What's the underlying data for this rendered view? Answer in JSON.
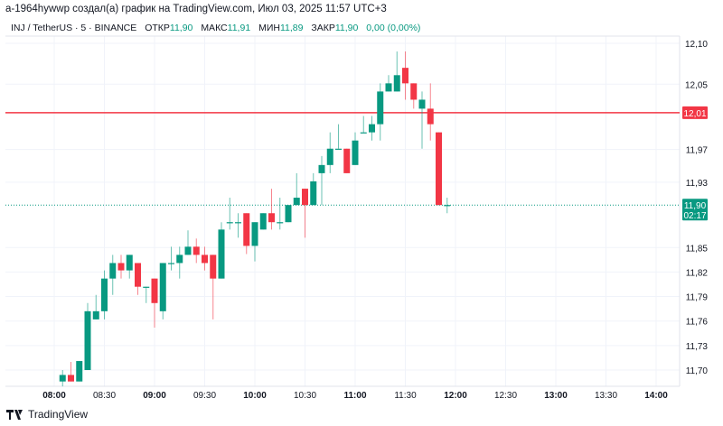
{
  "header": {
    "title": "a-1964hywwp создал(а) график на TradingView.com, Июл 03, 2025 11:57 UTC+3"
  },
  "legend": {
    "symbol": "INJ / TetherUS · 5 · BINANCE",
    "open_label": "ОТКР",
    "open": "11,90",
    "high_label": "МАКС",
    "high": "11,91",
    "low_label": "МИН",
    "low": "11,89",
    "close_label": "ЗАКР",
    "close": "11,90",
    "change": "0,00 (0,00%)"
  },
  "brand": {
    "name": "TradingView"
  },
  "colors": {
    "up": "#089981",
    "down": "#f23645",
    "grid": "#f0f3fa",
    "text": "#131722"
  },
  "chart_data": {
    "type": "candlestick",
    "interval": "5m",
    "price_ticks": [
      "12,10",
      "12,05",
      "11,97",
      "11,93",
      "11,85",
      "11,82",
      "11,79",
      "11,76",
      "11,73",
      "11,70"
    ],
    "price_tick_values": [
      12.1,
      12.05,
      11.97,
      11.93,
      11.85,
      11.82,
      11.79,
      11.76,
      11.73,
      11.7
    ],
    "time_ticks": [
      {
        "t": "08:00",
        "bold": true
      },
      {
        "t": "08:30"
      },
      {
        "t": "09:00",
        "bold": true
      },
      {
        "t": "09:30"
      },
      {
        "t": "10:00",
        "bold": true
      },
      {
        "t": "10:30"
      },
      {
        "t": "11:00",
        "bold": true
      },
      {
        "t": "11:30"
      },
      {
        "t": "12:00",
        "bold": true
      },
      {
        "t": "12:30"
      },
      {
        "t": "13:00",
        "bold": true
      },
      {
        "t": "13:30"
      },
      {
        "t": "14:00",
        "bold": true
      }
    ],
    "ylim": [
      11.68,
      12.115
    ],
    "horizontal_line": {
      "price": 12.015,
      "label": "12,01"
    },
    "last_price": {
      "price": 11.902,
      "label": "11,90",
      "countdown": "02:17"
    },
    "candles": [
      [
        "08:05",
        11.686,
        11.7,
        11.68,
        11.694
      ],
      [
        "08:10",
        11.694,
        11.71,
        11.686,
        11.686
      ],
      [
        "08:15",
        11.686,
        11.711,
        11.686,
        11.711
      ],
      [
        "08:20",
        11.7,
        11.782,
        11.7,
        11.772
      ],
      [
        "08:25",
        11.762,
        11.792,
        11.762,
        11.772
      ],
      [
        "08:30",
        11.772,
        11.822,
        11.762,
        11.812
      ],
      [
        "08:35",
        11.812,
        11.841,
        11.792,
        11.831
      ],
      [
        "08:40",
        11.831,
        11.841,
        11.812,
        11.822
      ],
      [
        "08:45",
        11.822,
        11.841,
        11.812,
        11.841
      ],
      [
        "08:50",
        11.831,
        11.831,
        11.792,
        11.802
      ],
      [
        "08:55",
        11.802,
        11.802,
        11.782,
        11.802
      ],
      [
        "09:00",
        11.812,
        11.812,
        11.752,
        11.782
      ],
      [
        "09:05",
        11.772,
        11.831,
        11.762,
        11.831
      ],
      [
        "09:10",
        11.831,
        11.851,
        11.822,
        11.831
      ],
      [
        "09:15",
        11.831,
        11.851,
        11.812,
        11.841
      ],
      [
        "09:20",
        11.841,
        11.871,
        11.841,
        11.851
      ],
      [
        "09:25",
        11.851,
        11.861,
        11.831,
        11.841
      ],
      [
        "09:30",
        11.841,
        11.851,
        11.822,
        11.831
      ],
      [
        "09:35",
        11.841,
        11.841,
        11.762,
        11.812
      ],
      [
        "09:40",
        11.812,
        11.881,
        11.812,
        11.872
      ],
      [
        "09:45",
        11.881,
        11.911,
        11.872,
        11.881
      ],
      [
        "09:50",
        11.881,
        11.892,
        11.862,
        11.881
      ],
      [
        "09:55",
        11.892,
        11.892,
        11.842,
        11.852
      ],
      [
        "10:00",
        11.852,
        11.881,
        11.833,
        11.881
      ],
      [
        "10:05",
        11.872,
        11.892,
        11.872,
        11.892
      ],
      [
        "10:10",
        11.892,
        11.922,
        11.872,
        11.881
      ],
      [
        "10:15",
        11.881,
        11.911,
        11.872,
        11.881
      ],
      [
        "10:20",
        11.881,
        11.902,
        11.881,
        11.902
      ],
      [
        "10:25",
        11.902,
        11.941,
        11.902,
        11.911
      ],
      [
        "10:30",
        11.922,
        11.922,
        11.862,
        11.902
      ],
      [
        "10:35",
        11.902,
        11.941,
        11.902,
        11.931
      ],
      [
        "10:40",
        11.941,
        11.962,
        11.902,
        11.951
      ],
      [
        "10:45",
        11.951,
        11.991,
        11.941,
        11.971
      ],
      [
        "10:50",
        11.971,
        12.001,
        11.971,
        11.971
      ],
      [
        "10:55",
        11.971,
        11.971,
        11.941,
        11.941
      ],
      [
        "11:00",
        11.951,
        11.991,
        11.951,
        11.981
      ],
      [
        "11:05",
        11.991,
        12.011,
        11.991,
        11.991
      ],
      [
        "11:10",
        11.991,
        12.011,
        11.981,
        12.001
      ],
      [
        "11:15",
        12.001,
        12.051,
        11.981,
        12.041
      ],
      [
        "11:20",
        12.041,
        12.061,
        12.041,
        12.051
      ],
      [
        "11:25",
        12.041,
        12.09,
        12.041,
        12.061
      ],
      [
        "11:30",
        12.07,
        12.09,
        12.031,
        12.051
      ],
      [
        "11:35",
        12.051,
        12.051,
        12.02,
        12.031
      ],
      [
        "11:40",
        12.02,
        12.041,
        11.971,
        12.031
      ],
      [
        "11:45",
        12.02,
        12.051,
        11.981,
        12.001
      ],
      [
        "11:50",
        11.991,
        11.991,
        11.902,
        11.902
      ],
      [
        "11:55",
        11.902,
        11.911,
        11.892,
        11.902
      ]
    ]
  }
}
